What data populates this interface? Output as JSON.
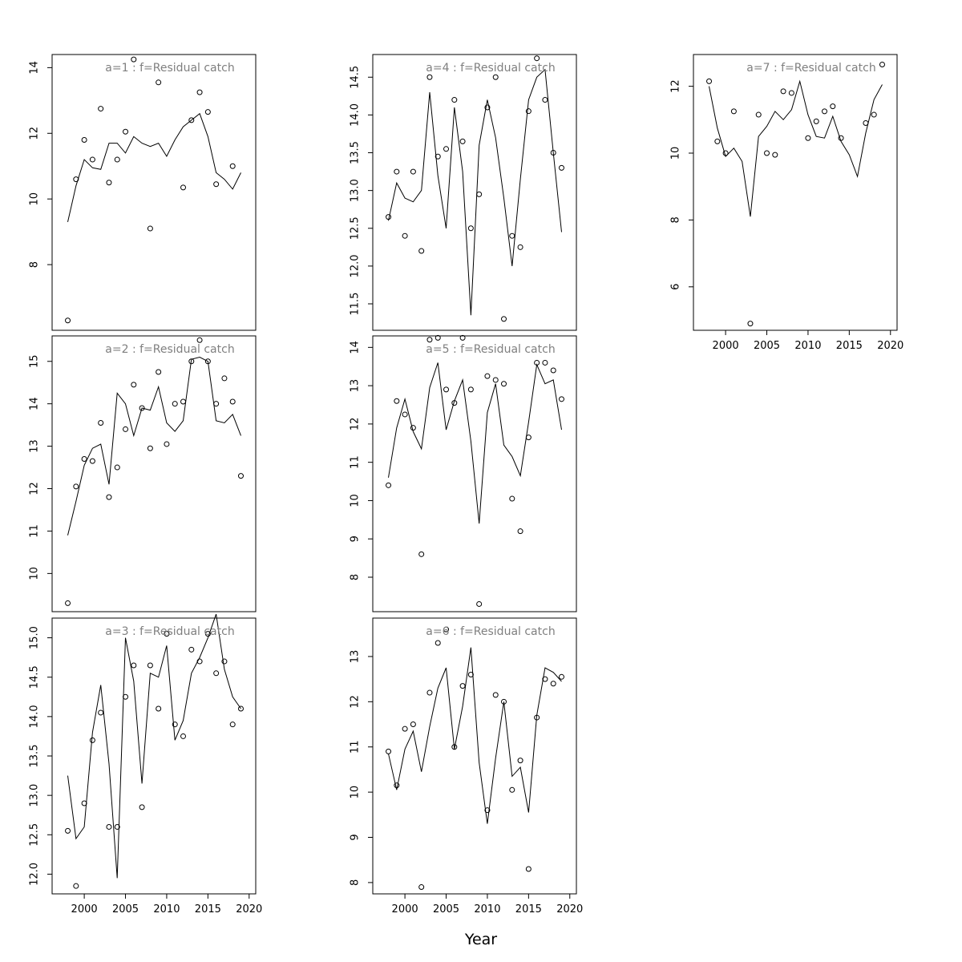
{
  "chart_data": {
    "type": "line",
    "xlabel": "Year",
    "series_style": {
      "observed": "points",
      "fitted": "line"
    },
    "x": [
      1998,
      1999,
      2000,
      2001,
      2002,
      2003,
      2004,
      2005,
      2006,
      2007,
      2008,
      2009,
      2010,
      2011,
      2012,
      2013,
      2014,
      2015,
      2016,
      2017,
      2018,
      2019
    ],
    "xticks": [
      2000,
      2005,
      2010,
      2015,
      2020
    ],
    "panels": [
      {
        "title": "a=1  :  f=Residual catch",
        "ylim": [
          6.0,
          14.4
        ],
        "yticks": [
          8,
          10,
          12,
          14
        ],
        "ytick_labels": [
          "8",
          "10",
          "12",
          "14"
        ],
        "observed_x": [
          1998,
          1999,
          2000,
          2001,
          2002,
          2003,
          2004,
          2005,
          2006,
          2008,
          2009,
          2012,
          2013,
          2014,
          2015,
          2016,
          2018
        ],
        "observed": [
          6.3,
          10.6,
          11.8,
          11.2,
          12.75,
          10.5,
          11.2,
          12.05,
          14.25,
          9.1,
          13.55,
          10.35,
          12.4,
          13.25,
          12.65,
          10.45,
          11.0
        ],
        "fitted": [
          9.3,
          10.4,
          11.2,
          10.95,
          10.9,
          11.7,
          11.7,
          11.4,
          11.9,
          11.7,
          11.6,
          11.7,
          11.3,
          11.8,
          12.2,
          12.4,
          12.6,
          11.9,
          10.8,
          10.6,
          10.3,
          10.8
        ]
      },
      {
        "title": "a=2  :  f=Residual catch",
        "ylim": [
          9.1,
          15.6
        ],
        "yticks": [
          10,
          11,
          12,
          13,
          14,
          15
        ],
        "ytick_labels": [
          "10",
          "11",
          "12",
          "13",
          "14",
          "15"
        ],
        "observed_x": [
          1998,
          1999,
          2000,
          2001,
          2002,
          2003,
          2004,
          2005,
          2006,
          2007,
          2008,
          2009,
          2010,
          2011,
          2012,
          2013,
          2014,
          2015,
          2016,
          2017,
          2018,
          2019
        ],
        "observed": [
          9.3,
          12.05,
          12.7,
          12.65,
          13.55,
          11.8,
          12.5,
          13.4,
          14.45,
          13.9,
          12.95,
          14.75,
          13.05,
          14.0,
          14.05,
          15.0,
          15.5,
          15.0,
          14.0,
          14.6,
          14.05,
          12.3
        ],
        "fitted": [
          10.9,
          11.7,
          12.55,
          12.95,
          13.05,
          12.1,
          14.25,
          14.0,
          13.25,
          13.9,
          13.85,
          14.4,
          13.55,
          13.35,
          13.6,
          15.05,
          15.1,
          15.0,
          13.6,
          13.55,
          13.75,
          13.25
        ]
      },
      {
        "title": "a=3  :  f=Residual catch",
        "ylim": [
          11.75,
          15.25
        ],
        "yticks": [
          12.0,
          12.5,
          13.0,
          13.5,
          14.0,
          14.5,
          15.0
        ],
        "ytick_labels": [
          "12.0",
          "12.5",
          "13.0",
          "13.5",
          "14.0",
          "14.5",
          "15.0"
        ],
        "observed_x": [
          1998,
          1999,
          2000,
          2001,
          2002,
          2003,
          2004,
          2005,
          2006,
          2007,
          2008,
          2009,
          2010,
          2011,
          2012,
          2013,
          2014,
          2015,
          2016,
          2017,
          2018,
          2019
        ],
        "observed": [
          12.55,
          11.85,
          12.9,
          13.7,
          14.05,
          12.6,
          12.6,
          14.25,
          14.65,
          12.85,
          14.65,
          14.1,
          15.05,
          13.9,
          13.75,
          14.85,
          14.7,
          15.05,
          14.55,
          14.7,
          13.9,
          14.1
        ],
        "fitted": [
          13.25,
          12.45,
          12.6,
          13.8,
          14.4,
          13.4,
          11.95,
          15.0,
          14.45,
          13.15,
          14.55,
          14.5,
          14.9,
          13.7,
          13.95,
          14.55,
          14.75,
          15.0,
          15.3,
          14.6,
          14.25,
          14.1
        ]
      },
      {
        "title": "a=4  :  f=Residual catch",
        "ylim": [
          11.15,
          14.8
        ],
        "yticks": [
          11.5,
          12.0,
          12.5,
          13.0,
          13.5,
          14.0,
          14.5
        ],
        "ytick_labels": [
          "11.5",
          "12.0",
          "12.5",
          "13.0",
          "13.5",
          "14.0",
          "14.5"
        ],
        "observed_x": [
          1998,
          1999,
          2000,
          2001,
          2002,
          2003,
          2004,
          2005,
          2006,
          2007,
          2008,
          2009,
          2010,
          2011,
          2012,
          2013,
          2014,
          2015,
          2016,
          2017,
          2018,
          2019
        ],
        "observed": [
          12.65,
          13.25,
          12.4,
          13.25,
          12.2,
          14.5,
          13.45,
          13.55,
          14.2,
          13.65,
          12.5,
          12.95,
          14.1,
          14.5,
          11.3,
          12.4,
          12.25,
          14.05,
          14.75,
          14.2,
          13.5,
          13.3
        ],
        "fitted": [
          12.6,
          13.1,
          12.9,
          12.85,
          13.0,
          14.3,
          13.2,
          12.5,
          14.1,
          13.25,
          11.35,
          13.6,
          14.2,
          13.7,
          12.9,
          12.0,
          13.15,
          14.2,
          14.5,
          14.6,
          13.5,
          12.45
        ]
      },
      {
        "title": "a=5  :  f=Residual catch",
        "ylim": [
          7.1,
          14.3
        ],
        "yticks": [
          8,
          9,
          10,
          11,
          12,
          13,
          14
        ],
        "ytick_labels": [
          "8",
          "9",
          "10",
          "11",
          "12",
          "13",
          "14"
        ],
        "observed_x": [
          1998,
          1999,
          2000,
          2001,
          2002,
          2003,
          2004,
          2005,
          2006,
          2007,
          2008,
          2009,
          2010,
          2011,
          2012,
          2013,
          2014,
          2015,
          2016,
          2017,
          2018,
          2019
        ],
        "observed": [
          10.4,
          12.6,
          12.25,
          11.9,
          8.6,
          14.2,
          14.25,
          12.9,
          12.55,
          14.25,
          12.9,
          7.3,
          13.25,
          13.15,
          13.05,
          10.05,
          9.2,
          11.65,
          13.6,
          13.6,
          13.4,
          12.65
        ],
        "fitted": [
          10.6,
          11.9,
          12.65,
          11.8,
          11.35,
          12.95,
          13.6,
          11.85,
          12.6,
          13.15,
          11.55,
          9.4,
          12.3,
          13.05,
          11.45,
          11.15,
          10.65,
          12.05,
          13.55,
          13.05,
          13.15,
          11.85
        ]
      },
      {
        "title": "a=6  :  f=Residual catch",
        "ylim": [
          7.75,
          13.85
        ],
        "yticks": [
          8,
          9,
          10,
          11,
          12,
          13
        ],
        "ytick_labels": [
          "8",
          "9",
          "10",
          "11",
          "12",
          "13"
        ],
        "observed_x": [
          1998,
          1999,
          2000,
          2001,
          2002,
          2003,
          2004,
          2005,
          2006,
          2007,
          2008,
          2010,
          2011,
          2012,
          2013,
          2014,
          2015,
          2016,
          2017,
          2018,
          2019
        ],
        "observed": [
          10.9,
          10.15,
          11.4,
          11.5,
          7.9,
          12.2,
          13.3,
          13.6,
          11.0,
          12.35,
          12.6,
          9.6,
          12.15,
          12.0,
          10.05,
          10.7,
          8.3,
          11.65,
          12.5,
          12.4,
          12.55
        ],
        "fitted": [
          10.85,
          10.05,
          10.95,
          11.35,
          10.45,
          11.45,
          12.3,
          12.75,
          10.95,
          11.9,
          13.2,
          10.65,
          9.3,
          10.75,
          12.0,
          10.35,
          10.55,
          9.55,
          11.7,
          12.75,
          12.65,
          12.45
        ]
      },
      {
        "title": "a=7  :  f=Residual catch",
        "ylim": [
          4.7,
          12.95
        ],
        "yticks": [
          6,
          8,
          10,
          12
        ],
        "ytick_labels": [
          "6",
          "8",
          "10",
          "12"
        ],
        "observed_x": [
          1998,
          1999,
          2000,
          2001,
          2003,
          2004,
          2005,
          2006,
          2007,
          2008,
          2010,
          2011,
          2012,
          2013,
          2014,
          2017,
          2018,
          2019
        ],
        "observed": [
          12.15,
          10.35,
          10.0,
          11.25,
          4.9,
          11.15,
          10.0,
          9.95,
          11.85,
          11.8,
          10.45,
          10.95,
          11.25,
          11.4,
          10.45,
          10.9,
          11.15,
          12.65
        ],
        "fitted": [
          12.0,
          10.75,
          9.9,
          10.15,
          9.75,
          8.1,
          10.5,
          10.8,
          11.25,
          11.0,
          11.3,
          12.15,
          11.15,
          10.5,
          10.45,
          11.1,
          10.35,
          9.95,
          9.3,
          10.6,
          11.6,
          12.05
        ]
      }
    ]
  }
}
